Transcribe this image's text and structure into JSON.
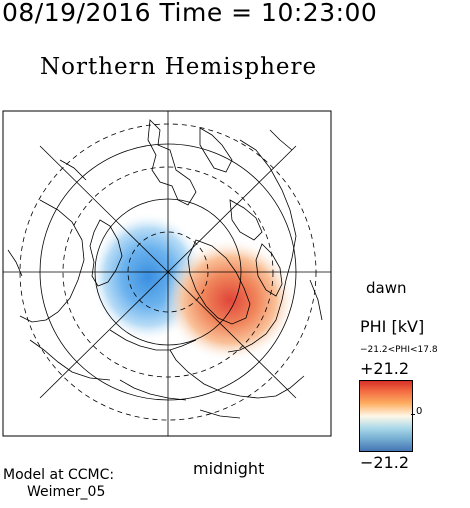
{
  "header": {
    "datetime": "08/19/2016 Time = 10:23:00",
    "title": "Northern Hemisphere"
  },
  "map": {
    "label_dawn": "dawn",
    "label_midnight": "midnight"
  },
  "colorbar": {
    "title": "PHI [kV]",
    "range_text": "−21.2<PHI<17.8",
    "max_label": "+21.2",
    "min_label": "−21.2",
    "zero_label": "0",
    "colors": {
      "positive": "#d73027",
      "neutral": "#ffffff",
      "negative": "#4575b4"
    }
  },
  "footer": {
    "model_line1": "Model at CCMC:",
    "model_line2": "Weimer_05"
  }
}
